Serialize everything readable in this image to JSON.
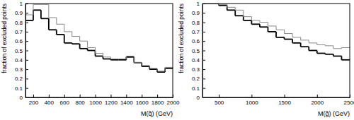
{
  "chart_data": [
    {
      "type": "histogram",
      "x_label": "M(q̃) (GeV)",
      "y_label": "fraction of excluded points",
      "bins": [
        100,
        200,
        300,
        400,
        500,
        600,
        700,
        800,
        900,
        1000,
        1100,
        1200,
        1300,
        1400,
        1500,
        1600,
        1700,
        1800,
        1900,
        2000
      ],
      "series": [
        {
          "color": "#000000",
          "values": [
            0.82,
            0.93,
            0.84,
            0.72,
            0.67,
            0.58,
            0.57,
            0.52,
            0.5,
            0.44,
            0.41,
            0.4,
            0.4,
            0.43,
            0.37,
            0.33,
            0.3,
            0.27,
            0.31
          ]
        },
        {
          "color": "#888888",
          "values": [
            0.88,
            0.99,
            0.99,
            0.85,
            0.78,
            0.7,
            0.65,
            0.6,
            0.53,
            0.47,
            0.43,
            0.41,
            0.41,
            0.44,
            0.37,
            0.34,
            0.31,
            0.28,
            0.32
          ]
        }
      ],
      "xlim": [
        100,
        2000
      ],
      "xticks": [
        200,
        400,
        600,
        800,
        1000,
        1200,
        1400,
        1600,
        1800,
        2000
      ],
      "ylim": [
        0,
        1
      ],
      "yticks": [
        0,
        0.1,
        0.2,
        0.3,
        0.4,
        0.5,
        0.6,
        0.7,
        0.8,
        0.9,
        1
      ]
    },
    {
      "type": "histogram",
      "x_label": "M(g̃) (GeV)",
      "y_label": "fraction of excluded points",
      "bins": [
        250,
        375,
        500,
        625,
        750,
        875,
        1000,
        1125,
        1250,
        1375,
        1500,
        1625,
        1750,
        1875,
        2000,
        2125,
        2250,
        2375,
        2500
      ],
      "series": [
        {
          "color": "#000000",
          "values": [
            1.0,
            1.0,
            0.98,
            0.93,
            0.87,
            0.82,
            0.78,
            0.75,
            0.7,
            0.64,
            0.62,
            0.58,
            0.54,
            0.5,
            0.47,
            0.46,
            0.44,
            0.4
          ]
        },
        {
          "color": "#888888",
          "values": [
            1.0,
            1.0,
            0.99,
            0.96,
            0.93,
            0.86,
            0.82,
            0.8,
            0.76,
            0.72,
            0.68,
            0.64,
            0.61,
            0.58,
            0.56,
            0.55,
            0.52,
            0.53
          ]
        }
      ],
      "xlim": [
        250,
        2500
      ],
      "xticks": [
        500,
        1000,
        1500,
        2000,
        2500
      ],
      "ylim": [
        0,
        1
      ],
      "yticks": [
        0,
        0.1,
        0.2,
        0.3,
        0.4,
        0.5,
        0.6,
        0.7,
        0.8,
        0.9,
        1
      ]
    }
  ]
}
